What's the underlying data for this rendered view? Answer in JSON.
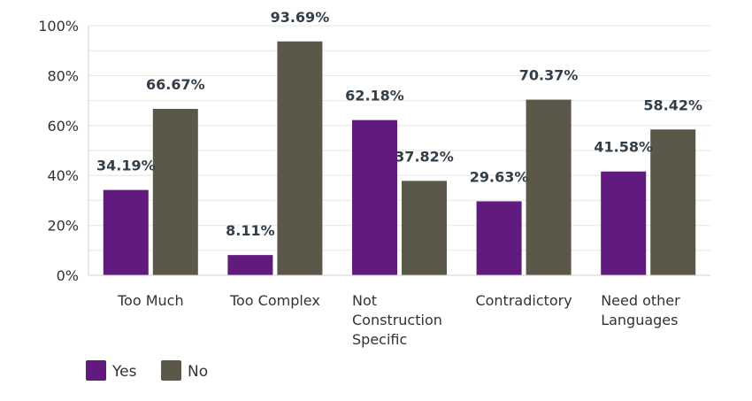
{
  "chart_data": {
    "type": "bar",
    "categories": [
      [
        "Too Much"
      ],
      [
        "Too Complex"
      ],
      [
        "Not",
        "Construction",
        "Specific"
      ],
      [
        "Contradictory"
      ],
      [
        "Need other",
        "Languages"
      ]
    ],
    "series": [
      {
        "name": "Yes",
        "color": "#611a7e",
        "values": [
          34.19,
          8.11,
          62.18,
          29.63,
          41.58
        ]
      },
      {
        "name": "No",
        "color": "#5b584a",
        "values": [
          66.67,
          93.69,
          37.82,
          70.37,
          58.42
        ]
      }
    ],
    "value_suffix": "%",
    "ylim": [
      0,
      100
    ],
    "yticks": [
      "0%",
      "20%",
      "40%",
      "60%",
      "80%",
      "100%"
    ],
    "grid": true,
    "legend_position": "bottom-left"
  }
}
